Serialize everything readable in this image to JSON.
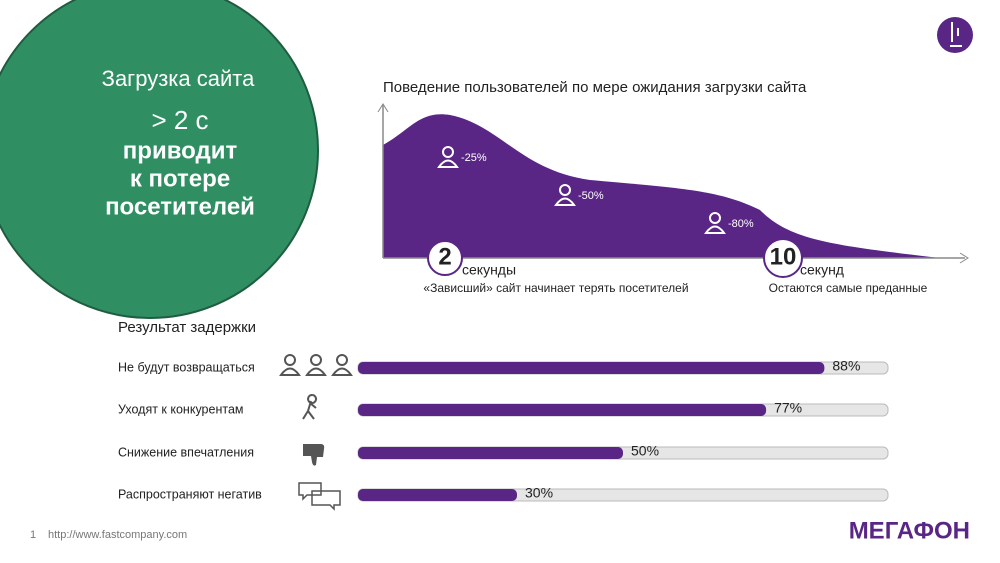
{
  "circle": {
    "lines": [
      "Загрузка сайта",
      "> 2 с",
      "приводит",
      "к потере",
      "посетителей"
    ]
  },
  "behavior": {
    "title": "Поведение пользователей по мере ожидания загрузки сайта",
    "markers": [
      "-25%",
      "-50%",
      "-80%"
    ],
    "points": [
      {
        "number": "2",
        "unit": "секунды",
        "caption": "«Зависший» сайт начинает терять посетителей"
      },
      {
        "number": "10",
        "unit": "секунд",
        "caption": "Остаются самые преданные"
      }
    ]
  },
  "chart_data": {
    "type": "bar",
    "title": "Результат задержки",
    "categories": [
      "Не будут возвращаться",
      "Уходят к конкурентам",
      "Снижение впечатления",
      "Распространяют негатив"
    ],
    "values": [
      88,
      77,
      50,
      30
    ],
    "value_labels": [
      "88%",
      "77%",
      "50%",
      "30%"
    ],
    "color": "#5a2686",
    "xlim": [
      0,
      100
    ]
  },
  "footer": {
    "page": "1",
    "source": "http://www.fastcompany.com",
    "logo": "МЕГАФОН"
  }
}
